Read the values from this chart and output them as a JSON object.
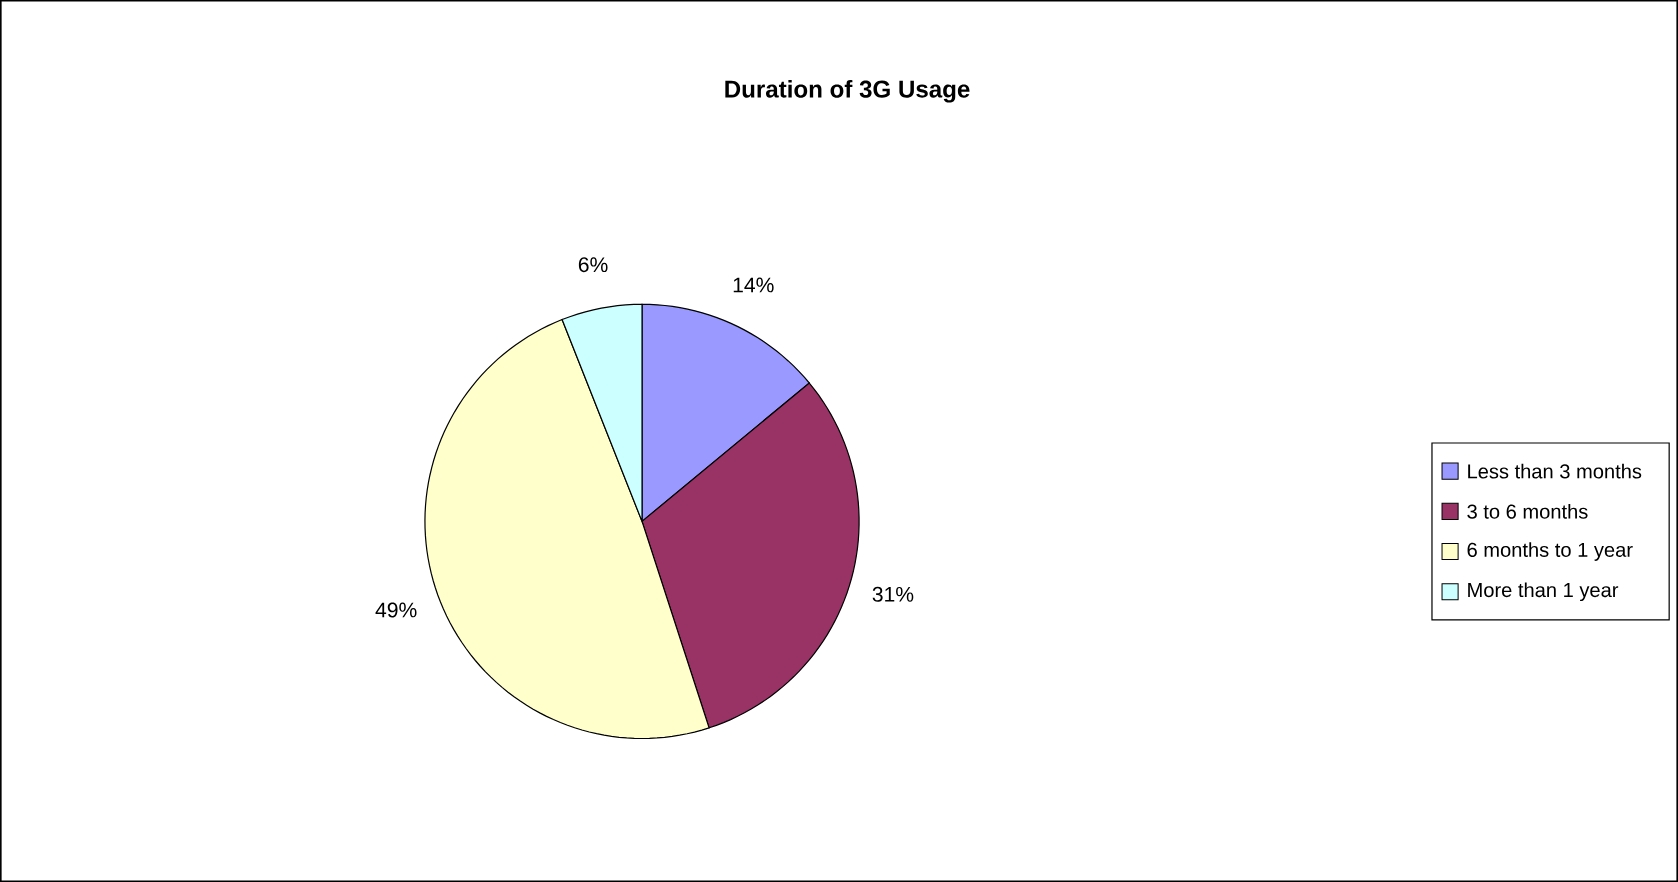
{
  "chart_data": {
    "type": "pie",
    "title": "Duration of 3G Usage",
    "categories": [
      "Less than 3 months",
      "3 to 6 months",
      "6 months to 1 year",
      "More than 1 year"
    ],
    "values": [
      14,
      31,
      49,
      6
    ],
    "colors": [
      "#9999ff",
      "#993366",
      "#ffffcc",
      "#ccffff"
    ],
    "value_labels": [
      "14%",
      "31%",
      "49%",
      "6%"
    ],
    "legend": "right"
  }
}
